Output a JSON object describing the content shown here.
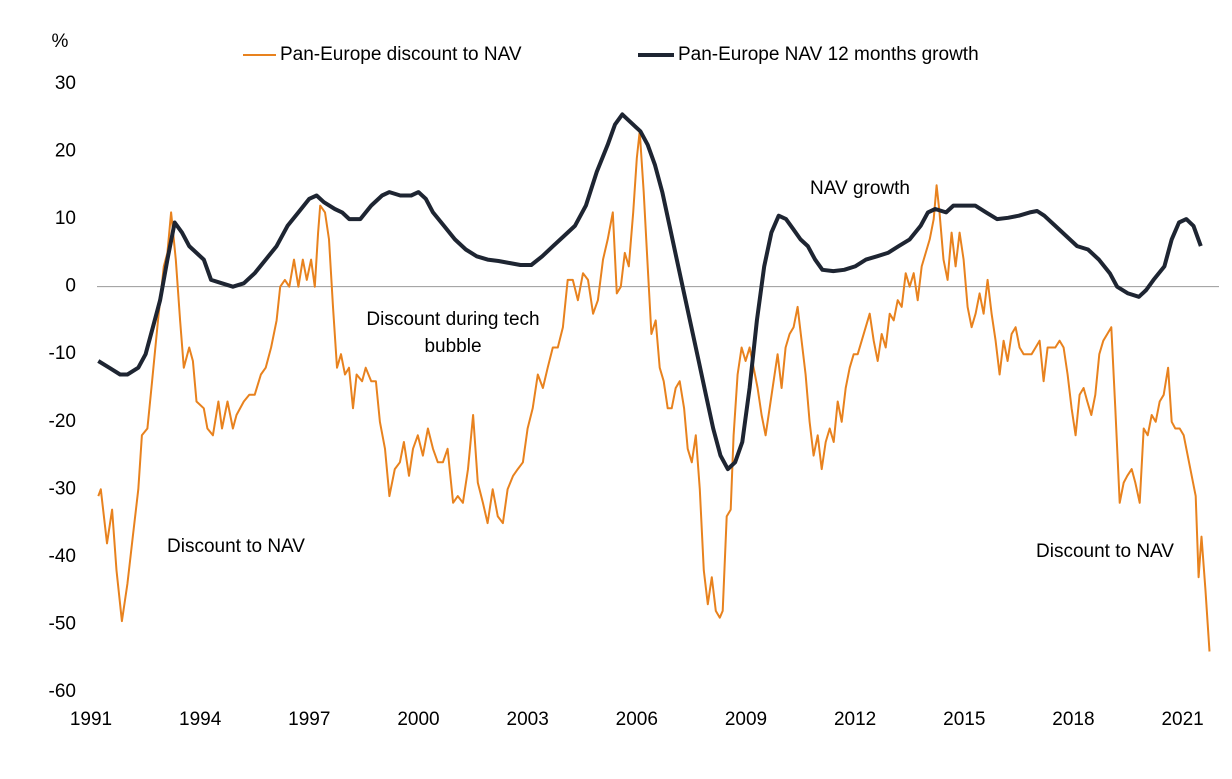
{
  "chart_data": {
    "type": "line",
    "y_label": "%",
    "legend": "top",
    "grid": false,
    "xlim": [
      1991,
      2022
    ],
    "xticks": [
      1991,
      1994,
      1997,
      2000,
      2003,
      2006,
      2009,
      2012,
      2015,
      2018,
      2021
    ],
    "ylim": [
      -60,
      30
    ],
    "yticks": [
      -60,
      -50,
      -40,
      -30,
      -20,
      -10,
      0,
      10,
      20,
      30
    ],
    "annotations": [
      "NAV growth",
      "Discount during tech bubble",
      "Discount to NAV",
      "Discount to NAV"
    ],
    "series": [
      {
        "name": "Pan-Europe discount to NAV",
        "color": "#e8821e",
        "x": [
          1991.2,
          1991.27,
          1991.44,
          1991.58,
          1991.7,
          1991.85,
          1992.0,
          1992.15,
          1992.3,
          1992.4,
          1992.55,
          1992.68,
          1992.84,
          1993.0,
          1993.1,
          1993.2,
          1993.33,
          1993.45,
          1993.55,
          1993.7,
          1993.8,
          1993.9,
          1994.1,
          1994.2,
          1994.35,
          1994.5,
          1994.6,
          1994.75,
          1994.9,
          1995.0,
          1995.2,
          1995.35,
          1995.5,
          1995.67,
          1995.8,
          1995.95,
          1996.1,
          1996.2,
          1996.33,
          1996.45,
          1996.58,
          1996.7,
          1996.82,
          1996.93,
          1997.05,
          1997.15,
          1997.24,
          1997.3,
          1997.43,
          1997.54,
          1997.65,
          1997.76,
          1997.87,
          1997.98,
          1998.09,
          1998.2,
          1998.3,
          1998.45,
          1998.55,
          1998.7,
          1998.83,
          1998.94,
          1999.08,
          1999.2,
          1999.35,
          1999.49,
          1999.6,
          1999.74,
          1999.85,
          1999.98,
          2000.12,
          2000.26,
          2000.4,
          2000.53,
          2000.67,
          2000.8,
          2000.95,
          2001.08,
          2001.22,
          2001.36,
          2001.5,
          2001.63,
          2001.77,
          2001.9,
          2002.04,
          2002.18,
          2002.32,
          2002.45,
          2002.6,
          2002.73,
          2002.87,
          2003.0,
          2003.14,
          2003.28,
          2003.42,
          2003.55,
          2003.69,
          2003.83,
          2003.97,
          2004.1,
          2004.24,
          2004.38,
          2004.52,
          2004.66,
          2004.8,
          2004.93,
          2005.07,
          2005.2,
          2005.34,
          2005.45,
          2005.56,
          2005.67,
          2005.78,
          2005.9,
          2006.0,
          2006.08,
          2006.19,
          2006.3,
          2006.4,
          2006.52,
          2006.63,
          2006.74,
          2006.85,
          2006.96,
          2007.07,
          2007.18,
          2007.3,
          2007.4,
          2007.51,
          2007.62,
          2007.73,
          2007.84,
          2007.95,
          2008.06,
          2008.17,
          2008.28,
          2008.36,
          2008.47,
          2008.58,
          2008.66,
          2008.77,
          2008.88,
          2008.99,
          2009.1,
          2009.21,
          2009.32,
          2009.43,
          2009.54,
          2009.65,
          2009.76,
          2009.87,
          2009.98,
          2010.09,
          2010.2,
          2010.31,
          2010.42,
          2010.53,
          2010.64,
          2010.75,
          2010.86,
          2010.97,
          2011.08,
          2011.19,
          2011.3,
          2011.41,
          2011.52,
          2011.63,
          2011.74,
          2011.85,
          2011.96,
          2012.07,
          2012.18,
          2012.29,
          2012.4,
          2012.51,
          2012.62,
          2012.73,
          2012.84,
          2012.95,
          2013.06,
          2013.17,
          2013.28,
          2013.39,
          2013.5,
          2013.61,
          2013.72,
          2013.83,
          2013.94,
          2014.05,
          2014.16,
          2014.24,
          2014.32,
          2014.43,
          2014.54,
          2014.65,
          2014.76,
          2014.87,
          2014.98,
          2015.09,
          2015.2,
          2015.31,
          2015.42,
          2015.53,
          2015.64,
          2015.75,
          2015.86,
          2015.97,
          2016.08,
          2016.19,
          2016.3,
          2016.41,
          2016.52,
          2016.63,
          2016.74,
          2016.85,
          2016.96,
          2017.07,
          2017.18,
          2017.29,
          2017.4,
          2017.5,
          2017.62,
          2017.73,
          2017.84,
          2017.95,
          2018.06,
          2018.17,
          2018.28,
          2018.38,
          2018.49,
          2018.6,
          2018.71,
          2018.82,
          2018.93,
          2019.04,
          2019.15,
          2019.27,
          2019.38,
          2019.48,
          2019.6,
          2019.7,
          2019.82,
          2019.93,
          2020.04,
          2020.15,
          2020.26,
          2020.37,
          2020.48,
          2020.6,
          2020.7,
          2020.8,
          2020.92,
          2021.03,
          2021.14,
          2021.25,
          2021.36,
          2021.44,
          2021.52,
          2021.63,
          2021.74
        ],
        "values": [
          -31,
          -30,
          -38,
          -33,
          -42,
          -49.5,
          -44,
          -37,
          -30,
          -22,
          -21,
          -14,
          -5,
          3,
          5,
          11,
          4,
          -5,
          -12,
          -9,
          -11,
          -17,
          -18,
          -21,
          -22,
          -17,
          -21,
          -17,
          -21,
          -19,
          -17,
          -16,
          -16,
          -13,
          -12,
          -9,
          -5,
          0,
          1,
          0,
          4,
          0,
          4,
          1,
          4,
          0,
          8,
          12,
          11,
          7,
          -3,
          -12,
          -10,
          -13,
          -12,
          -18,
          -13,
          -14,
          -12,
          -14,
          -14,
          -20,
          -24,
          -31,
          -27,
          -26,
          -23,
          -28,
          -24,
          -22,
          -25,
          -21,
          -24,
          -26,
          -26,
          -24,
          -32,
          -31,
          -32,
          -27,
          -19,
          -29,
          -32,
          -35,
          -30,
          -34,
          -35,
          -30,
          -28,
          -27,
          -26,
          -21,
          -18,
          -13,
          -15,
          -12,
          -9,
          -9,
          -6,
          1,
          1,
          -2,
          2,
          1,
          -4,
          -2,
          4,
          7,
          11,
          -1,
          0,
          5,
          3,
          11,
          19,
          23,
          14,
          3,
          -7,
          -5,
          -12,
          -14,
          -18,
          -18,
          -15,
          -14,
          -18,
          -24,
          -26,
          -22,
          -30,
          -42,
          -47,
          -43,
          -48,
          -49,
          -48,
          -34,
          -33,
          -22,
          -13,
          -9,
          -11,
          -9,
          -12,
          -15,
          -19,
          -22,
          -18,
          -14,
          -10,
          -15,
          -9,
          -7,
          -6,
          -3,
          -8,
          -13,
          -20,
          -25,
          -22,
          -27,
          -23,
          -21,
          -23,
          -17,
          -20,
          -15,
          -12,
          -10,
          -10,
          -8,
          -6,
          -4,
          -8,
          -11,
          -7,
          -9,
          -4,
          -5,
          -2,
          -3,
          2,
          0,
          2,
          -2,
          3,
          5,
          7,
          10,
          15,
          11,
          4,
          1,
          8,
          3,
          8,
          4,
          -3,
          -6,
          -4,
          -1,
          -4,
          1,
          -4,
          -8,
          -13,
          -8,
          -11,
          -7,
          -6,
          -9,
          -10,
          -10,
          -10,
          -9,
          -8,
          -14,
          -9,
          -9,
          -9,
          -8,
          -9,
          -13,
          -18,
          -22,
          -16,
          -15,
          -17,
          -19,
          -16,
          -10,
          -8,
          -7,
          -6,
          -18,
          -32,
          -29,
          -28,
          -27,
          -29,
          -32,
          -21,
          -22,
          -19,
          -20,
          -17,
          -16,
          -12,
          -20,
          -21,
          -21,
          -22,
          -25,
          -28,
          -31,
          -43,
          -37,
          -45,
          -54
        ]
      },
      {
        "name": "Pan-Europe NAV 12 months growth",
        "color": "#1e2532",
        "x": [
          1991.2,
          1991.5,
          1991.8,
          1992.0,
          1992.3,
          1992.5,
          1992.7,
          1992.9,
          1993.1,
          1993.3,
          1993.5,
          1993.7,
          1993.9,
          1994.1,
          1994.3,
          1994.6,
          1994.9,
          1995.2,
          1995.5,
          1995.8,
          1996.1,
          1996.4,
          1996.7,
          1997.0,
          1997.2,
          1997.4,
          1997.7,
          1997.9,
          1998.1,
          1998.4,
          1998.7,
          1999.0,
          1999.2,
          1999.5,
          1999.8,
          2000.0,
          2000.2,
          2000.4,
          2000.7,
          2001.0,
          2001.3,
          2001.6,
          2001.9,
          2002.2,
          2002.5,
          2002.8,
          2003.1,
          2003.4,
          2003.7,
          2004.0,
          2004.3,
          2004.6,
          2004.9,
          2005.2,
          2005.4,
          2005.6,
          2005.8,
          2006.1,
          2006.3,
          2006.5,
          2006.7,
          2006.9,
          2007.1,
          2007.3,
          2007.5,
          2007.7,
          2007.9,
          2008.1,
          2008.3,
          2008.5,
          2008.7,
          2008.9,
          2009.1,
          2009.3,
          2009.5,
          2009.7,
          2009.9,
          2010.1,
          2010.3,
          2010.5,
          2010.7,
          2010.9,
          2011.1,
          2011.4,
          2011.7,
          2012.0,
          2012.3,
          2012.6,
          2012.9,
          2013.2,
          2013.5,
          2013.8,
          2014.0,
          2014.2,
          2014.5,
          2014.7,
          2015.0,
          2015.3,
          2015.6,
          2015.9,
          2016.2,
          2016.5,
          2016.8,
          2017.0,
          2017.2,
          2017.5,
          2017.8,
          2018.1,
          2018.4,
          2018.7,
          2019.0,
          2019.2,
          2019.5,
          2019.8,
          2020.0,
          2020.2,
          2020.5,
          2020.7,
          2020.9,
          2021.1,
          2021.3,
          2021.5
        ],
        "values": [
          -11,
          -12,
          -13,
          -13,
          -12,
          -10,
          -6,
          -2,
          4,
          9.5,
          8,
          6,
          5,
          4,
          1,
          0.5,
          0,
          0.5,
          2,
          4,
          6,
          9,
          11,
          13,
          13.5,
          12.5,
          11.5,
          11,
          10,
          10,
          12,
          13.5,
          14,
          13.5,
          13.5,
          14,
          13,
          11,
          9,
          7,
          5.5,
          4.5,
          4,
          3.8,
          3.5,
          3.2,
          3.2,
          4.5,
          6,
          7.5,
          9,
          12,
          17,
          21,
          24,
          25.5,
          24.5,
          23,
          21,
          18,
          14,
          9,
          4,
          -1,
          -6,
          -11,
          -16,
          -21,
          -25,
          -27,
          -26,
          -23,
          -15,
          -5,
          3,
          8,
          10.5,
          10,
          8.5,
          7,
          6,
          4,
          2.5,
          2.3,
          2.5,
          3,
          4,
          4.5,
          5,
          6,
          7,
          9,
          11,
          11.5,
          11,
          12,
          12,
          12,
          11,
          10,
          10.2,
          10.5,
          11,
          11.2,
          10.5,
          9,
          7.5,
          6,
          5.5,
          4,
          2,
          0,
          -1,
          -1.5,
          -0.5,
          1,
          3,
          7,
          9.5,
          10,
          9,
          6
        ]
      }
    ]
  }
}
